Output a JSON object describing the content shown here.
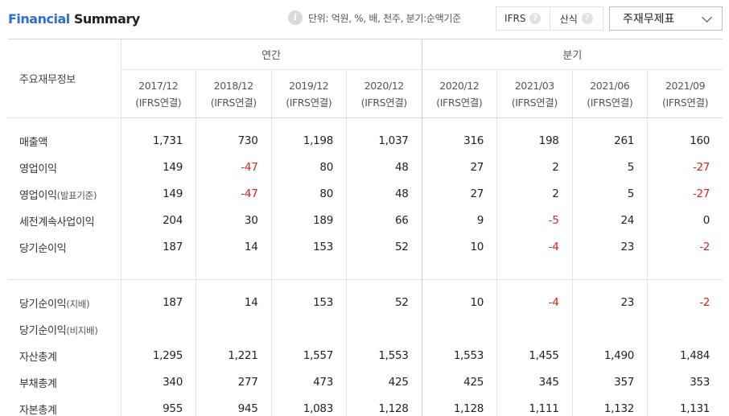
{
  "header": {
    "title_part1": "Financial",
    "title_part2": "Summary",
    "unit_text": "단위: 억원, %, 배, 천주, 분기:순액기준",
    "info_icon": "info-icon",
    "toggle": [
      {
        "label": "IFRS",
        "help": "?"
      },
      {
        "label": "산식",
        "help": "?"
      }
    ],
    "dropdown_label": "주재무제표"
  },
  "table": {
    "row_header": "주요재무정보",
    "groups": [
      {
        "label": "연간"
      },
      {
        "label": "분기"
      }
    ],
    "columns": [
      {
        "period": "2017/12",
        "basis": "(IFRS연결)"
      },
      {
        "period": "2018/12",
        "basis": "(IFRS연결)"
      },
      {
        "period": "2019/12",
        "basis": "(IFRS연결)"
      },
      {
        "period": "2020/12",
        "basis": "(IFRS연결)"
      },
      {
        "period": "2020/12",
        "basis": "(IFRS연결)"
      },
      {
        "period": "2021/03",
        "basis": "(IFRS연결)"
      },
      {
        "period": "2021/06",
        "basis": "(IFRS연결)"
      },
      {
        "period": "2021/09",
        "basis": "(IFRS연결)"
      }
    ],
    "rows": [
      {
        "label": "매출액",
        "label_small": "",
        "values": [
          "1,731",
          "730",
          "1,198",
          "1,037",
          "316",
          "198",
          "261",
          "160"
        ]
      },
      {
        "label": "영업이익",
        "label_small": "",
        "values": [
          "149",
          "-47",
          "80",
          "48",
          "27",
          "2",
          "5",
          "-27"
        ]
      },
      {
        "label": "영업이익",
        "label_small": "(발표기준)",
        "values": [
          "149",
          "-47",
          "80",
          "48",
          "27",
          "2",
          "5",
          "-27"
        ]
      },
      {
        "label": "세전계속사업이익",
        "label_small": "",
        "values": [
          "204",
          "30",
          "189",
          "66",
          "9",
          "-5",
          "24",
          "0"
        ]
      },
      {
        "label": "당기순이익",
        "label_small": "",
        "values": [
          "187",
          "14",
          "153",
          "52",
          "10",
          "-4",
          "23",
          "-2"
        ]
      },
      {
        "label": "당기순이익",
        "label_small": "(지배)",
        "values": [
          "187",
          "14",
          "153",
          "52",
          "10",
          "-4",
          "23",
          "-2"
        ]
      },
      {
        "label": "당기순이익",
        "label_small": "(비지배)",
        "values": [
          "",
          "",
          "",
          "",
          "",
          "",
          "",
          ""
        ]
      },
      {
        "label": "자산총계",
        "label_small": "",
        "values": [
          "1,295",
          "1,221",
          "1,557",
          "1,553",
          "1,553",
          "1,455",
          "1,490",
          "1,484"
        ]
      },
      {
        "label": "부채총계",
        "label_small": "",
        "values": [
          "340",
          "277",
          "473",
          "425",
          "425",
          "345",
          "357",
          "353"
        ]
      },
      {
        "label": "자본총계",
        "label_small": "",
        "values": [
          "955",
          "945",
          "1,083",
          "1,128",
          "1,128",
          "1,111",
          "1,132",
          "1,131"
        ]
      }
    ]
  }
}
